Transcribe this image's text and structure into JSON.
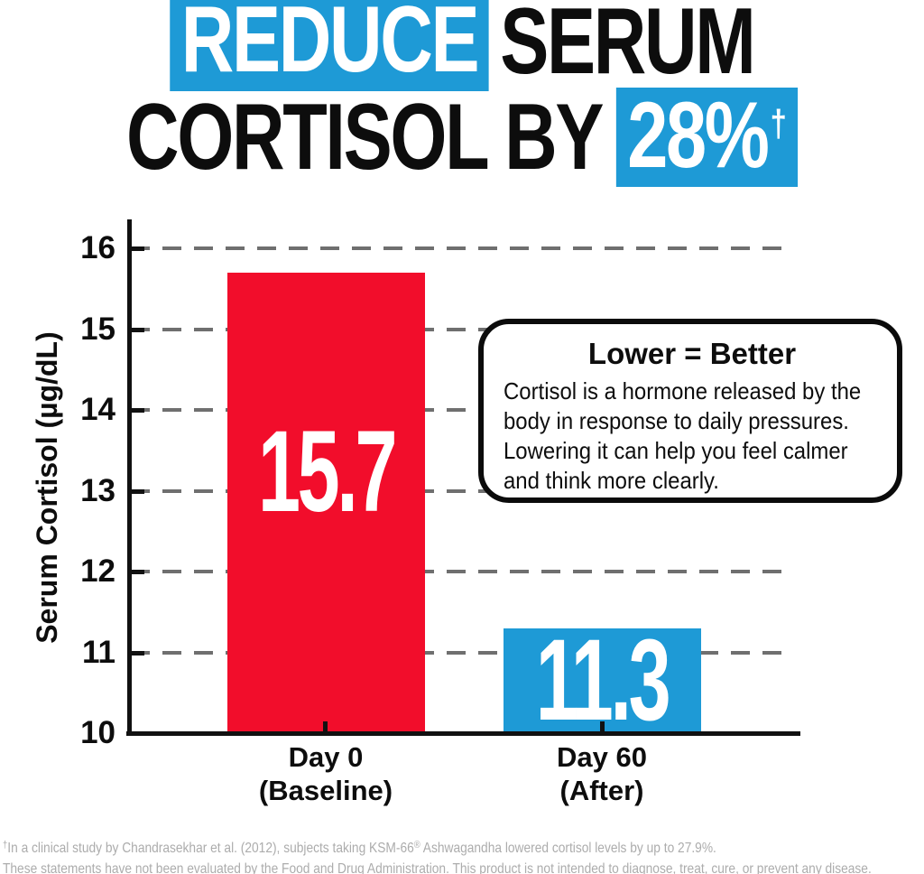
{
  "title": {
    "highlight1": "REDUCE",
    "rest1": "SERUM",
    "rest2": "CORTISOL BY",
    "highlight2": "28%",
    "highlight2_sup": "†"
  },
  "colors": {
    "accent_blue": "#1E9AD6",
    "bar_red": "#F20D2B",
    "grid_gray": "#6f6f6f",
    "footnote_gray": "#acacac"
  },
  "chart_data": {
    "type": "bar",
    "title": "",
    "xlabel": "",
    "ylabel": "Serum Cortisol (µg/dL)",
    "ylim": [
      10,
      16
    ],
    "yticks": [
      16,
      15,
      14,
      13,
      12,
      11,
      10
    ],
    "grid": "horizontal dashed gray, behind bars",
    "legend": "none",
    "categories": [
      {
        "line1": "Day 0",
        "line2": "(Baseline)"
      },
      {
        "line1": "Day 60",
        "line2": "(After)"
      }
    ],
    "values": [
      15.7,
      11.3
    ],
    "value_labels": [
      "15.7",
      "11.3"
    ],
    "bar_colors": [
      "#F20D2B",
      "#1E9AD6"
    ]
  },
  "callout": {
    "title": "Lower = Better",
    "body_lines": [
      "Cortisol is a hormone released by the",
      "body in response to daily pressures.",
      "Lowering it can help you feel calmer",
      "and think more clearly."
    ]
  },
  "footnote": {
    "line1_sup": "†",
    "line1_a": "In a clinical study by Chandrasekhar et al. (2012), subjects taking KSM-66",
    "line1_reg": "®",
    "line1_b": " Ashwagandha lowered cortisol levels by up to 27.9%.",
    "line2": "These statements have not been evaluated by the Food and Drug Administration. This product is not intended to diagnose, treat, cure, or prevent any disease."
  }
}
